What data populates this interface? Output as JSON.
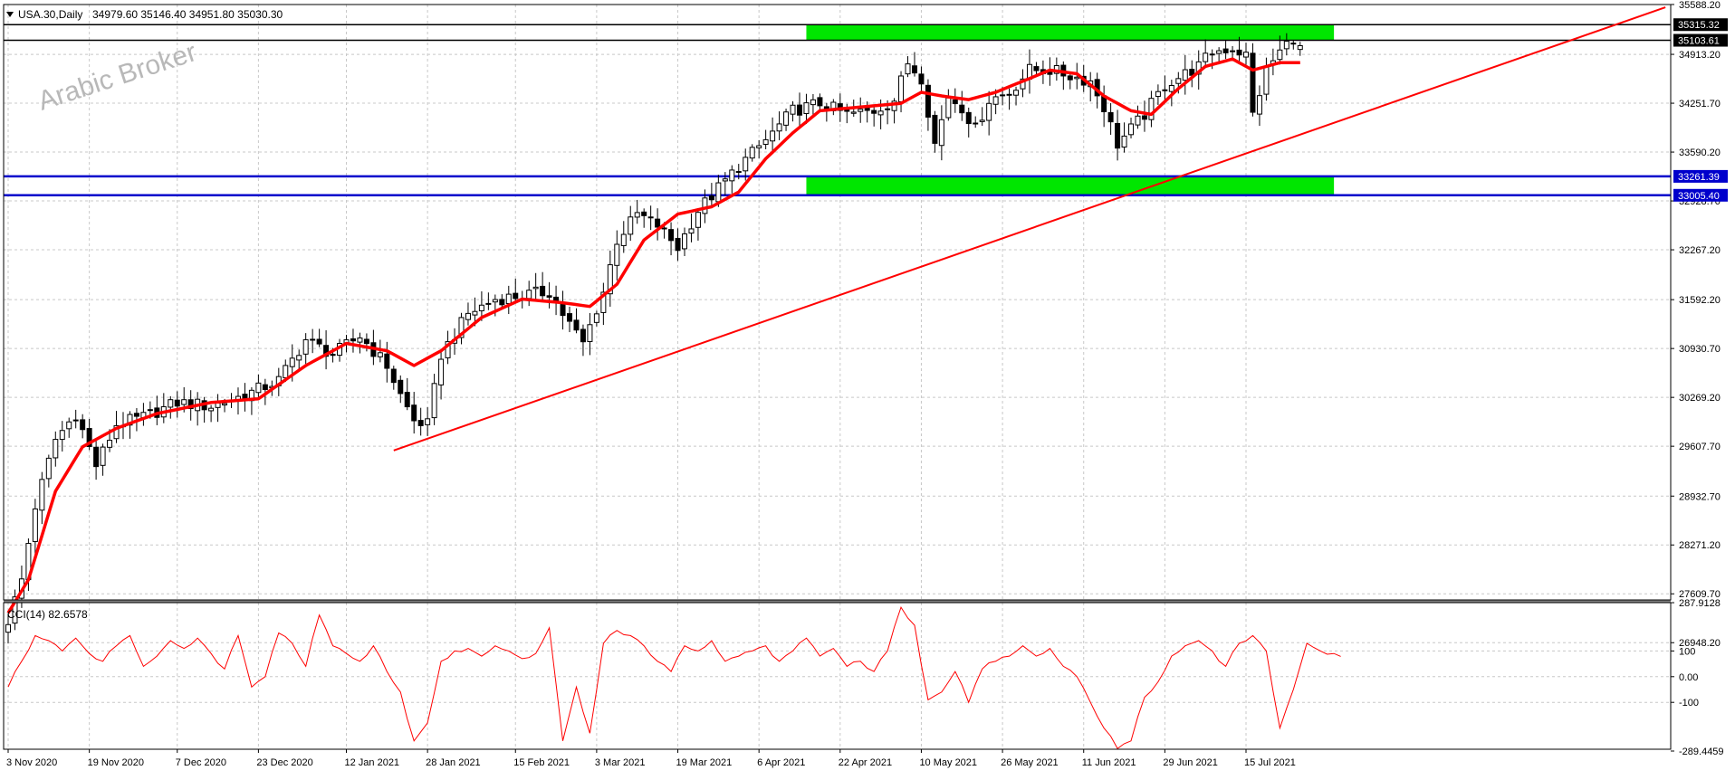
{
  "header": {
    "menu_icon": "triangle-down-icon",
    "symbol": "USA.30,Daily",
    "ohlc": "34979.60 35146.40 34951.80 35030.30"
  },
  "watermark": "Arabic Broker",
  "indicator": {
    "label": "CCI(14) 82.6578"
  },
  "colors": {
    "background": "#ffffff",
    "grid": "#c8c8c8",
    "candle_up_body": "#ffffff",
    "candle_down_body": "#000000",
    "candle_outline": "#000000",
    "moving_average": "#ff0000",
    "trendline": "#ff0000",
    "zone": "#00e600",
    "support_line": "#0000cc",
    "resistance_line": "#000000",
    "cci_line": "#ff0000"
  },
  "chart_data": [
    {
      "type": "candlestick",
      "title": "USA.30,Daily",
      "ylim": [
        26600,
        35600
      ],
      "y_ticks": [
        35588.2,
        34913.2,
        34251.7,
        33590.2,
        32928.7,
        32267.2,
        31592.2,
        30930.7,
        30269.2,
        29607.7,
        28932.7,
        28271.2,
        27609.7,
        26948.2
      ],
      "y_tick_labels": [
        "35588.20",
        "34913.20",
        "34251.70",
        "33590.20",
        "32928.70",
        "32267.20",
        "31592.20",
        "30930.70",
        "30269.20",
        "29607.70",
        "28932.70",
        "28271.20",
        "27609.70",
        "26948.20"
      ],
      "x_dates": [
        "3 Nov 2020",
        "19 Nov 2020",
        "7 Dec 2020",
        "23 Dec 2020",
        "12 Jan 2021",
        "28 Jan 2021",
        "15 Feb 2021",
        "3 Mar 2021",
        "19 Mar 2021",
        "6 Apr 2021",
        "22 Apr 2021",
        "10 May 2021",
        "26 May 2021",
        "11 Jun 2021",
        "29 Jun 2021",
        "15 Jul 2021"
      ],
      "x_date_index": [
        0,
        12,
        25,
        37,
        50,
        62,
        75,
        87,
        99,
        111,
        123,
        135,
        147,
        159,
        171,
        183
      ],
      "price_anchors": [
        [
          0,
          27250
        ],
        [
          2,
          27800
        ],
        [
          4,
          28800
        ],
        [
          7,
          29700
        ],
        [
          10,
          30050
        ],
        [
          13,
          29350
        ],
        [
          16,
          29900
        ],
        [
          20,
          30000
        ],
        [
          25,
          30200
        ],
        [
          30,
          30150
        ],
        [
          35,
          30300
        ],
        [
          40,
          30500
        ],
        [
          44,
          31050
        ],
        [
          48,
          30850
        ],
        [
          52,
          31100
        ],
        [
          56,
          30700
        ],
        [
          58,
          30300
        ],
        [
          60,
          29950
        ],
        [
          62,
          29900
        ],
        [
          64,
          30850
        ],
        [
          68,
          31400
        ],
        [
          72,
          31600
        ],
        [
          76,
          31650
        ],
        [
          80,
          31700
        ],
        [
          82,
          31400
        ],
        [
          85,
          31000
        ],
        [
          88,
          31700
        ],
        [
          90,
          32400
        ],
        [
          93,
          32750
        ],
        [
          96,
          32600
        ],
        [
          99,
          32300
        ],
        [
          102,
          32800
        ],
        [
          105,
          33100
        ],
        [
          108,
          33400
        ],
        [
          112,
          33750
        ],
        [
          116,
          34150
        ],
        [
          120,
          34250
        ],
        [
          124,
          34100
        ],
        [
          128,
          34150
        ],
        [
          131,
          34300
        ],
        [
          133,
          34800
        ],
        [
          135,
          34600
        ],
        [
          137,
          33700
        ],
        [
          139,
          34350
        ],
        [
          141,
          34200
        ],
        [
          143,
          33900
        ],
        [
          145,
          34300
        ],
        [
          148,
          34400
        ],
        [
          151,
          34700
        ],
        [
          154,
          34700
        ],
        [
          158,
          34600
        ],
        [
          160,
          34550
        ],
        [
          162,
          34200
        ],
        [
          164,
          33700
        ],
        [
          166,
          33900
        ],
        [
          168,
          34100
        ],
        [
          171,
          34500
        ],
        [
          174,
          34650
        ],
        [
          176,
          34750
        ],
        [
          178,
          34950
        ],
        [
          181,
          35000
        ],
        [
          183,
          34900
        ],
        [
          184,
          34100
        ],
        [
          186,
          34700
        ],
        [
          188,
          34950
        ],
        [
          190,
          35150
        ],
        [
          191,
          35030
        ]
      ],
      "moving_average_anchors": [
        [
          0,
          27350
        ],
        [
          3,
          27800
        ],
        [
          7,
          29000
        ],
        [
          11,
          29600
        ],
        [
          16,
          29850
        ],
        [
          22,
          30050
        ],
        [
          30,
          30200
        ],
        [
          37,
          30250
        ],
        [
          44,
          30700
        ],
        [
          50,
          31000
        ],
        [
          56,
          30900
        ],
        [
          60,
          30700
        ],
        [
          64,
          30900
        ],
        [
          70,
          31350
        ],
        [
          76,
          31600
        ],
        [
          82,
          31550
        ],
        [
          86,
          31500
        ],
        [
          90,
          31800
        ],
        [
          94,
          32400
        ],
        [
          99,
          32750
        ],
        [
          104,
          32850
        ],
        [
          108,
          33050
        ],
        [
          112,
          33500
        ],
        [
          116,
          33850
        ],
        [
          120,
          34150
        ],
        [
          126,
          34200
        ],
        [
          132,
          34250
        ],
        [
          135,
          34400
        ],
        [
          138,
          34350
        ],
        [
          142,
          34300
        ],
        [
          146,
          34400
        ],
        [
          150,
          34550
        ],
        [
          154,
          34700
        ],
        [
          158,
          34650
        ],
        [
          162,
          34350
        ],
        [
          166,
          34150
        ],
        [
          169,
          34100
        ],
        [
          173,
          34450
        ],
        [
          177,
          34750
        ],
        [
          181,
          34850
        ],
        [
          184,
          34700
        ],
        [
          188,
          34800
        ],
        [
          191,
          34800
        ]
      ],
      "trendline": {
        "start": [
          57,
          29550
        ],
        "end": [
          245,
          35550
        ]
      },
      "support_zone": {
        "low": 33005.4,
        "high": 33261.39,
        "from_index": 118,
        "to_index": 196
      },
      "resistance_zone": {
        "low": 35103.61,
        "high": 35315.32,
        "from_index": 118,
        "to_index": 196
      },
      "price_levels": [
        {
          "value": 35315.32,
          "label": "35315.32",
          "color": "#000000"
        },
        {
          "value": 35103.61,
          "label": "35103.61",
          "color": "#000000"
        },
        {
          "value": 33261.39,
          "label": "33261.39",
          "color": "#0000cc"
        },
        {
          "value": 33005.4,
          "label": "33005.40",
          "color": "#0000cc"
        }
      ]
    },
    {
      "type": "line",
      "title": "CCI(14) 82.6578",
      "ylim": [
        -289.4459,
        287.9128
      ],
      "y_ticks": [
        287.9128,
        100,
        0,
        -100,
        -289.4459
      ],
      "y_tick_labels": [
        "287.9128",
        "100",
        "0.00",
        "-100",
        "-289.4459"
      ],
      "cci_anchors": [
        [
          0,
          -40
        ],
        [
          2,
          60
        ],
        [
          4,
          160
        ],
        [
          6,
          140
        ],
        [
          8,
          100
        ],
        [
          10,
          150
        ],
        [
          12,
          90
        ],
        [
          14,
          60
        ],
        [
          16,
          120
        ],
        [
          18,
          160
        ],
        [
          20,
          40
        ],
        [
          22,
          80
        ],
        [
          24,
          140
        ],
        [
          26,
          110
        ],
        [
          28,
          150
        ],
        [
          30,
          90
        ],
        [
          32,
          30
        ],
        [
          34,
          160
        ],
        [
          36,
          -40
        ],
        [
          38,
          0
        ],
        [
          40,
          170
        ],
        [
          42,
          130
        ],
        [
          44,
          40
        ],
        [
          46,
          240
        ],
        [
          48,
          120
        ],
        [
          50,
          90
        ],
        [
          52,
          60
        ],
        [
          54,
          120
        ],
        [
          56,
          20
        ],
        [
          58,
          -60
        ],
        [
          60,
          -250
        ],
        [
          62,
          -180
        ],
        [
          64,
          60
        ],
        [
          66,
          100
        ],
        [
          68,
          110
        ],
        [
          70,
          80
        ],
        [
          72,
          120
        ],
        [
          74,
          100
        ],
        [
          76,
          70
        ],
        [
          78,
          90
        ],
        [
          80,
          190
        ],
        [
          82,
          -250
        ],
        [
          84,
          -40
        ],
        [
          86,
          -220
        ],
        [
          88,
          130
        ],
        [
          90,
          180
        ],
        [
          92,
          160
        ],
        [
          94,
          120
        ],
        [
          96,
          60
        ],
        [
          98,
          20
        ],
        [
          100,
          120
        ],
        [
          102,
          100
        ],
        [
          104,
          140
        ],
        [
          106,
          60
        ],
        [
          108,
          80
        ],
        [
          110,
          100
        ],
        [
          112,
          120
        ],
        [
          114,
          60
        ],
        [
          116,
          100
        ],
        [
          118,
          150
        ],
        [
          120,
          80
        ],
        [
          122,
          110
        ],
        [
          124,
          40
        ],
        [
          126,
          60
        ],
        [
          128,
          20
        ],
        [
          130,
          100
        ],
        [
          132,
          270
        ],
        [
          134,
          200
        ],
        [
          136,
          -90
        ],
        [
          138,
          -60
        ],
        [
          140,
          20
        ],
        [
          142,
          -100
        ],
        [
          144,
          30
        ],
        [
          146,
          60
        ],
        [
          148,
          80
        ],
        [
          150,
          120
        ],
        [
          152,
          80
        ],
        [
          154,
          110
        ],
        [
          156,
          40
        ],
        [
          158,
          0
        ],
        [
          160,
          -100
        ],
        [
          162,
          -200
        ],
        [
          164,
          -280
        ],
        [
          166,
          -250
        ],
        [
          168,
          -80
        ],
        [
          170,
          -20
        ],
        [
          172,
          80
        ],
        [
          174,
          120
        ],
        [
          176,
          140
        ],
        [
          178,
          100
        ],
        [
          180,
          40
        ],
        [
          182,
          130
        ],
        [
          184,
          160
        ],
        [
          186,
          100
        ],
        [
          188,
          -200
        ],
        [
          190,
          -50
        ],
        [
          192,
          130
        ],
        [
          194,
          100
        ],
        [
          196,
          90
        ],
        [
          197,
          82.6578
        ]
      ]
    }
  ]
}
